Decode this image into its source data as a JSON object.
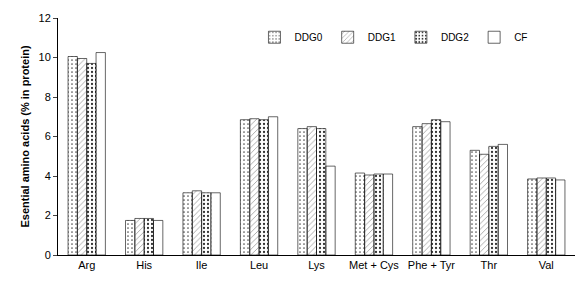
{
  "chart_data": {
    "type": "bar",
    "y_label": "Esential amino acids (% in protein)",
    "categories": [
      "Arg",
      "His",
      "Ile",
      "Leu",
      "Lys",
      "Met + Cys",
      "Phe + Tyr",
      "Thr",
      "Val"
    ],
    "series": [
      {
        "name": "DDG0",
        "color": "#f2f2f2",
        "values": [
          10.05,
          1.75,
          3.15,
          6.85,
          6.4,
          4.15,
          6.5,
          5.3,
          3.85
        ]
      },
      {
        "name": "DDG1",
        "color": "#d9d9d9",
        "values": [
          9.95,
          1.85,
          3.25,
          6.9,
          6.5,
          4.05,
          6.65,
          5.1,
          3.9
        ]
      },
      {
        "name": "DDG2",
        "color": "#a6a6a6",
        "values": [
          9.7,
          1.85,
          3.15,
          6.85,
          6.4,
          4.1,
          6.85,
          5.5,
          3.9
        ]
      },
      {
        "name": "CF",
        "color": "#1a1a1a",
        "values": [
          10.25,
          1.75,
          3.15,
          7.0,
          4.5,
          4.1,
          6.75,
          5.6,
          3.8
        ]
      }
    ],
    "ylim": [
      0,
      12
    ],
    "yticks": [
      0,
      2,
      4,
      6,
      8,
      10,
      12
    ],
    "grid": false,
    "legend": "top"
  }
}
